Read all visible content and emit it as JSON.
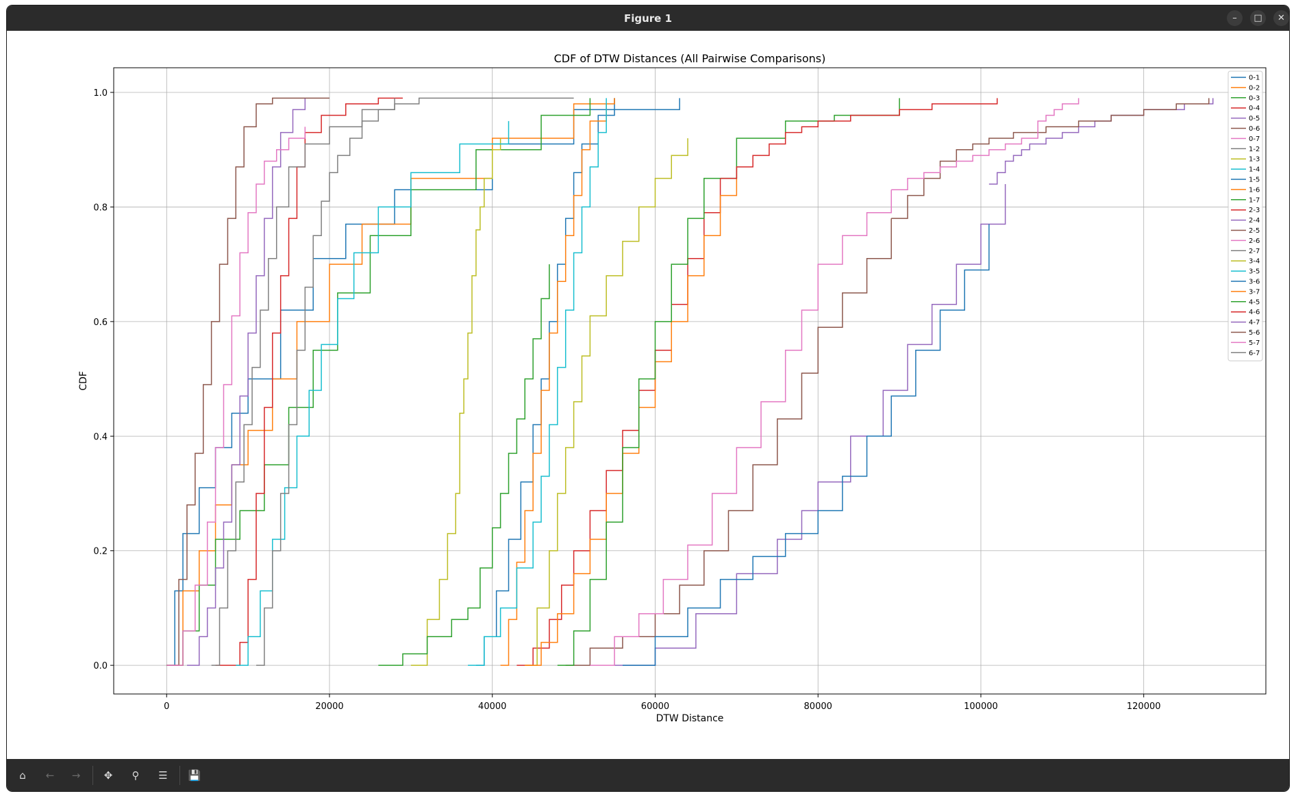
{
  "window": {
    "title": "Figure 1",
    "minimize_icon": "minimize-icon",
    "maximize_icon": "maximize-icon",
    "close_icon": "close-icon"
  },
  "toolbar": {
    "buttons": [
      {
        "name": "home-icon",
        "enabled": true
      },
      {
        "name": "back-arrow-icon",
        "enabled": false
      },
      {
        "name": "forward-arrow-icon",
        "enabled": false
      },
      {
        "name": "pan-icon",
        "enabled": true
      },
      {
        "name": "zoom-icon",
        "enabled": true
      },
      {
        "name": "configure-subplots-icon",
        "enabled": true
      },
      {
        "name": "save-icon",
        "enabled": true
      }
    ]
  },
  "chart_data": {
    "type": "line",
    "title": "CDF of DTW Distances (All Pairwise Comparisons)",
    "xlabel": "DTW Distance",
    "ylabel": "CDF",
    "xlim": [
      -6500,
      135000
    ],
    "ylim": [
      -0.05,
      1.043
    ],
    "xticks": [
      0,
      20000,
      40000,
      60000,
      80000,
      100000,
      120000
    ],
    "xtick_labels": [
      "0",
      "20000",
      "40000",
      "60000",
      "80000",
      "100000",
      "120000"
    ],
    "yticks": [
      0.0,
      0.2,
      0.4,
      0.6,
      0.8,
      1.0
    ],
    "ytick_labels": [
      "0.0",
      "0.2",
      "0.4",
      "0.6",
      "0.8",
      "1.0"
    ],
    "grid": true,
    "legend_position": "top-right",
    "series": [
      {
        "name": "0-1",
        "color": "#1f77b4",
        "x": [
          0,
          1000,
          2000,
          4000,
          6000,
          8000,
          10000,
          14000,
          18000,
          22000,
          28000,
          40000,
          50000,
          63000
        ],
        "y": [
          0.0,
          0.13,
          0.23,
          0.31,
          0.38,
          0.44,
          0.5,
          0.62,
          0.71,
          0.77,
          0.83,
          0.91,
          0.97,
          0.99
        ]
      },
      {
        "name": "0-2",
        "color": "#ff7f0e",
        "x": [
          0,
          2000,
          4000,
          6000,
          8000,
          10000,
          13000,
          16000,
          20000,
          24000,
          30000,
          40000,
          50000,
          55000
        ],
        "y": [
          0.0,
          0.13,
          0.2,
          0.28,
          0.35,
          0.41,
          0.5,
          0.6,
          0.7,
          0.77,
          0.85,
          0.92,
          0.98,
          0.99
        ]
      },
      {
        "name": "0-3",
        "color": "#2ca02c",
        "x": [
          0,
          2000,
          4000,
          6000,
          9000,
          12000,
          15000,
          18000,
          21000,
          25000,
          30000,
          38000,
          46000,
          52000
        ],
        "y": [
          0.0,
          0.06,
          0.14,
          0.22,
          0.27,
          0.35,
          0.45,
          0.55,
          0.65,
          0.75,
          0.83,
          0.9,
          0.96,
          0.99
        ]
      },
      {
        "name": "0-4",
        "color": "#d62728",
        "x": [
          6000,
          9000,
          10000,
          11000,
          12000,
          13000,
          14000,
          15000,
          16000,
          17000,
          19000,
          22000,
          26000,
          29000
        ],
        "y": [
          0.0,
          0.04,
          0.15,
          0.3,
          0.45,
          0.58,
          0.68,
          0.78,
          0.87,
          0.93,
          0.96,
          0.98,
          0.99,
          0.99
        ]
      },
      {
        "name": "0-5",
        "color": "#9467bd",
        "x": [
          2500,
          4000,
          5000,
          6000,
          7000,
          8000,
          9000,
          10000,
          11000,
          12000,
          13000,
          14000,
          15500,
          17000
        ],
        "y": [
          0.0,
          0.05,
          0.1,
          0.17,
          0.25,
          0.35,
          0.47,
          0.58,
          0.68,
          0.78,
          0.87,
          0.93,
          0.97,
          0.99
        ]
      },
      {
        "name": "0-6",
        "color": "#8c564b",
        "x": [
          0,
          1500,
          2500,
          3500,
          4500,
          5500,
          6500,
          7500,
          8500,
          9500,
          11000,
          13000,
          16000,
          20000
        ],
        "y": [
          0.0,
          0.15,
          0.28,
          0.37,
          0.49,
          0.6,
          0.7,
          0.78,
          0.87,
          0.94,
          0.98,
          0.99,
          0.99,
          0.99
        ]
      },
      {
        "name": "0-7",
        "color": "#e377c2",
        "x": [
          0,
          2000,
          3500,
          5000,
          6000,
          7000,
          8000,
          9000,
          10000,
          11000,
          12000,
          13500,
          15000,
          17000
        ],
        "y": [
          0.0,
          0.06,
          0.14,
          0.25,
          0.38,
          0.49,
          0.61,
          0.72,
          0.79,
          0.84,
          0.88,
          0.9,
          0.92,
          0.94
        ]
      },
      {
        "name": "1-2",
        "color": "#7f7f7f",
        "x": [
          5500,
          6500,
          7500,
          8500,
          9500,
          10500,
          11500,
          12500,
          13500,
          15000,
          17000,
          20000,
          24000,
          28000
        ],
        "y": [
          0.0,
          0.1,
          0.2,
          0.32,
          0.42,
          0.52,
          0.62,
          0.71,
          0.8,
          0.87,
          0.91,
          0.94,
          0.97,
          0.99
        ]
      },
      {
        "name": "1-3",
        "color": "#bcbd22",
        "x": [
          30000,
          32000,
          33500,
          34500,
          35500,
          36000,
          36500,
          37000,
          37500,
          38000,
          38500,
          39000,
          40000,
          41000
        ],
        "y": [
          0.0,
          0.08,
          0.15,
          0.23,
          0.3,
          0.44,
          0.5,
          0.58,
          0.68,
          0.76,
          0.8,
          0.85,
          0.9,
          0.92
        ]
      },
      {
        "name": "1-4",
        "color": "#17becf",
        "x": [
          8500,
          10000,
          11500,
          13000,
          14500,
          16000,
          17500,
          19000,
          21000,
          23000,
          26000,
          30000,
          36000,
          42000
        ],
        "y": [
          0.0,
          0.05,
          0.13,
          0.22,
          0.31,
          0.4,
          0.48,
          0.56,
          0.64,
          0.72,
          0.8,
          0.86,
          0.91,
          0.95
        ]
      },
      {
        "name": "1-5",
        "color": "#1f77b4",
        "x": [
          38000,
          39000,
          40500,
          42000,
          43500,
          45000,
          46000,
          47000,
          48000,
          49000,
          50000,
          51000,
          53000,
          55000
        ],
        "y": [
          0.0,
          0.05,
          0.13,
          0.22,
          0.32,
          0.42,
          0.5,
          0.6,
          0.7,
          0.78,
          0.86,
          0.91,
          0.96,
          0.99
        ]
      },
      {
        "name": "1-6",
        "color": "#ff7f0e",
        "x": [
          41000,
          42000,
          43000,
          44000,
          45000,
          46000,
          47000,
          48000,
          49000,
          50000,
          51000,
          52000,
          54000,
          55000
        ],
        "y": [
          0.0,
          0.08,
          0.18,
          0.27,
          0.37,
          0.48,
          0.58,
          0.67,
          0.75,
          0.82,
          0.9,
          0.95,
          0.98,
          0.99
        ]
      },
      {
        "name": "1-7",
        "color": "#2ca02c",
        "x": [
          26000,
          29000,
          32000,
          35000,
          37000,
          38500,
          40000,
          41000,
          42000,
          43000,
          44000,
          45000,
          46000,
          47000
        ],
        "y": [
          0.0,
          0.02,
          0.05,
          0.08,
          0.1,
          0.17,
          0.24,
          0.3,
          0.37,
          0.43,
          0.5,
          0.57,
          0.64,
          0.7
        ]
      },
      {
        "name": "2-3",
        "color": "#d62728",
        "x": [
          43000,
          45000,
          47000,
          48500,
          50000,
          52000,
          54000,
          56000,
          58000,
          60000,
          62000,
          64000,
          66000,
          68000
        ],
        "y": [
          0.0,
          0.03,
          0.08,
          0.14,
          0.2,
          0.27,
          0.34,
          0.41,
          0.48,
          0.55,
          0.63,
          0.71,
          0.79,
          0.85
        ]
      },
      {
        "name": "2-4",
        "color": "#9467bd",
        "x": [
          55000,
          60000,
          65000,
          70000,
          75000,
          78000,
          80000,
          84000,
          88000,
          91000,
          94000,
          97000,
          100000,
          103000
        ],
        "y": [
          0.0,
          0.03,
          0.09,
          0.16,
          0.22,
          0.27,
          0.32,
          0.4,
          0.48,
          0.56,
          0.63,
          0.7,
          0.77,
          0.84
        ]
      },
      {
        "name": "2-5",
        "color": "#8c564b",
        "x": [
          49000,
          52000,
          56000,
          60000,
          63000,
          66000,
          69000,
          72000,
          75000,
          78000,
          80000,
          83000,
          86000,
          89000
        ],
        "y": [
          0.0,
          0.03,
          0.05,
          0.09,
          0.14,
          0.2,
          0.27,
          0.35,
          0.43,
          0.51,
          0.59,
          0.65,
          0.71,
          0.78
        ]
      },
      {
        "name": "2-6",
        "color": "#e377c2",
        "x": [
          52000,
          55000,
          58000,
          61000,
          64000,
          67000,
          70000,
          73000,
          76000,
          78000,
          80000,
          83000,
          86000,
          89000
        ],
        "y": [
          0.0,
          0.05,
          0.09,
          0.15,
          0.21,
          0.3,
          0.38,
          0.46,
          0.55,
          0.62,
          0.7,
          0.75,
          0.79,
          0.83
        ]
      },
      {
        "name": "2-7",
        "color": "#7f7f7f",
        "x": [
          11000,
          12000,
          13000,
          14000,
          15000,
          16000,
          17000,
          18000,
          19000,
          20000,
          21000,
          22500,
          24000,
          26000
        ],
        "y": [
          0.0,
          0.1,
          0.2,
          0.3,
          0.42,
          0.55,
          0.66,
          0.75,
          0.81,
          0.86,
          0.89,
          0.92,
          0.95,
          0.97
        ]
      },
      {
        "name": "3-4",
        "color": "#bcbd22",
        "x": [
          44000,
          45500,
          47000,
          48000,
          49000,
          50000,
          51000,
          52000,
          54000,
          56000,
          58000,
          60000,
          62000,
          64000
        ],
        "y": [
          0.0,
          0.1,
          0.2,
          0.3,
          0.38,
          0.46,
          0.54,
          0.61,
          0.68,
          0.74,
          0.8,
          0.85,
          0.89,
          0.92
        ]
      },
      {
        "name": "3-5",
        "color": "#17becf",
        "x": [
          37000,
          39000,
          41000,
          43000,
          45000,
          46000,
          47000,
          48000,
          49000,
          50000,
          51000,
          52000,
          53000,
          54000
        ],
        "y": [
          0.0,
          0.05,
          0.1,
          0.17,
          0.25,
          0.33,
          0.42,
          0.52,
          0.62,
          0.72,
          0.8,
          0.87,
          0.93,
          0.99
        ]
      },
      {
        "name": "3-6",
        "color": "#1f77b4",
        "x": [
          56000,
          60000,
          64000,
          68000,
          72000,
          76000,
          80000,
          83000,
          86000,
          89000,
          92000,
          95000,
          98000,
          101000
        ],
        "y": [
          0.0,
          0.05,
          0.1,
          0.15,
          0.19,
          0.23,
          0.27,
          0.33,
          0.4,
          0.47,
          0.55,
          0.62,
          0.69,
          0.77
        ]
      },
      {
        "name": "3-7",
        "color": "#ff7f0e",
        "x": [
          44000,
          46000,
          48000,
          50000,
          52000,
          54000,
          56000,
          58000,
          60000,
          62000,
          64000,
          66000,
          68000,
          70000
        ],
        "y": [
          0.0,
          0.04,
          0.09,
          0.16,
          0.22,
          0.3,
          0.37,
          0.45,
          0.53,
          0.6,
          0.68,
          0.75,
          0.82,
          0.87
        ]
      },
      {
        "name": "4-5",
        "color": "#2ca02c",
        "x": [
          48000,
          50000,
          52000,
          54000,
          56000,
          58000,
          60000,
          62000,
          64000,
          66000,
          70000,
          76000,
          82000,
          90000
        ],
        "y": [
          0.0,
          0.06,
          0.15,
          0.25,
          0.38,
          0.5,
          0.6,
          0.7,
          0.78,
          0.85,
          0.92,
          0.95,
          0.96,
          0.99
        ]
      },
      {
        "name": "4-6",
        "color": "#d62728",
        "x": [
          68000,
          70000,
          72000,
          74000,
          76000,
          78000,
          80000,
          82000,
          84000,
          86000,
          90000,
          94000,
          98000,
          102000
        ],
        "y": [
          0.85,
          0.87,
          0.89,
          0.91,
          0.93,
          0.94,
          0.95,
          0.95,
          0.96,
          0.96,
          0.97,
          0.98,
          0.98,
          0.99
        ]
      },
      {
        "name": "4-7",
        "color": "#9467bd",
        "x": [
          101000,
          102000,
          103000,
          104000,
          105000,
          106000,
          108000,
          110000,
          112000,
          114000,
          116000,
          120000,
          125000,
          128500
        ],
        "y": [
          0.84,
          0.86,
          0.88,
          0.89,
          0.9,
          0.91,
          0.92,
          0.93,
          0.94,
          0.95,
          0.96,
          0.97,
          0.98,
          0.99
        ]
      },
      {
        "name": "5-6",
        "color": "#8c564b",
        "x": [
          89000,
          91000,
          93000,
          95000,
          97000,
          99000,
          101000,
          104000,
          108000,
          112000,
          116000,
          120000,
          124000,
          128000
        ],
        "y": [
          0.78,
          0.82,
          0.85,
          0.88,
          0.9,
          0.91,
          0.92,
          0.93,
          0.94,
          0.95,
          0.96,
          0.97,
          0.98,
          0.99
        ]
      },
      {
        "name": "5-7",
        "color": "#e377c2",
        "x": [
          89000,
          91000,
          93000,
          95000,
          97000,
          99000,
          101000,
          103000,
          105000,
          107000,
          108000,
          109000,
          110000,
          112000
        ],
        "y": [
          0.83,
          0.85,
          0.86,
          0.87,
          0.88,
          0.89,
          0.9,
          0.91,
          0.92,
          0.95,
          0.96,
          0.97,
          0.98,
          0.99
        ]
      },
      {
        "name": "6-7",
        "color": "#7f7f7f",
        "x": [
          26000,
          27000,
          28000,
          29000,
          30000,
          31000,
          32000,
          34000,
          36000,
          38000,
          40000,
          44000,
          48000,
          50000
        ],
        "y": [
          0.97,
          0.97,
          0.98,
          0.98,
          0.98,
          0.99,
          0.99,
          0.99,
          0.99,
          0.99,
          0.99,
          0.99,
          0.99,
          0.99
        ]
      }
    ]
  }
}
